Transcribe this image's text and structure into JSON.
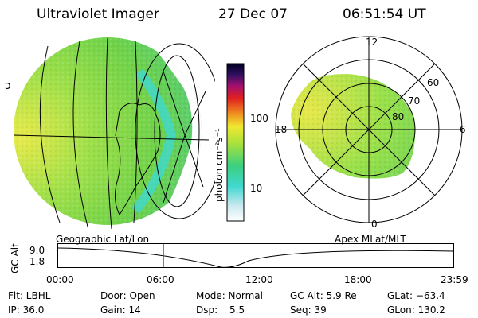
{
  "header": {
    "instrument": "Ultraviolet Imager",
    "date": "27 Dec 07",
    "time": "06:51:54 UT"
  },
  "colorbar": {
    "unit_label": "photon cm⁻²s⁻¹",
    "ticks": [
      "100",
      "10"
    ]
  },
  "polar": {
    "mlt_labels": [
      "12",
      "18",
      "6",
      "0"
    ],
    "lat_labels": [
      "60",
      "70",
      "80"
    ]
  },
  "timeline": {
    "left_caption": "Geographic Lat/Lon",
    "right_caption": "Apex MLat/MLT",
    "axis_label": "GC Alt",
    "y_ticks": [
      "9.0",
      "1.8"
    ],
    "x_ticks": [
      "00:00",
      "06:00",
      "12:00",
      "18:00",
      "23:59"
    ]
  },
  "status": {
    "filter": "Flt: LBHL",
    "ip": "IP: 36.0",
    "door": "Door: Open",
    "gain": "Gain: 14",
    "mode": "Mode: Normal",
    "dsp_label": "Dsp:",
    "dsp_value": "5.5",
    "gc_alt": "GC Alt: 5.9 Re",
    "seq": "Seq: 39",
    "glat": "GLat: −63.4",
    "glon": "GLon: 130.2"
  },
  "colors": {
    "auroral_green": "#7fd84a",
    "auroral_yellow": "#e8e84a",
    "auroral_cyan": "#40d8d0",
    "time_marker": "#d02020"
  }
}
